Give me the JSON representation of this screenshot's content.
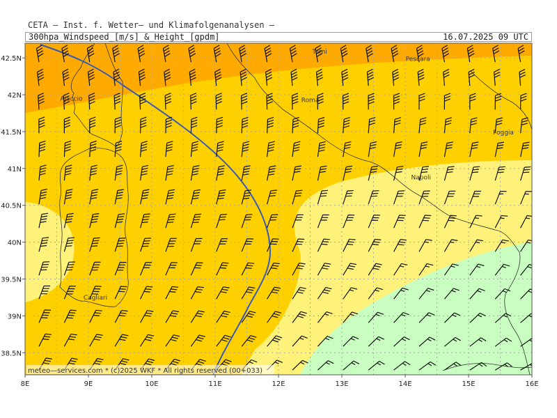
{
  "header": {
    "title": "CETA — Inst. f. Wetter— und Klimafolgenanalysen —",
    "product": "300hpa_Windspeed_[m/s]_&_Height_[gpdm]",
    "datetime": "16.07.2025 09 UTC"
  },
  "map": {
    "lon_range": [
      8,
      16
    ],
    "lat_range": [
      38.2,
      42.7
    ],
    "lon_ticks": [
      {
        "value": 8,
        "label": "8E"
      },
      {
        "value": 9,
        "label": "9E"
      },
      {
        "value": 10,
        "label": "10E"
      },
      {
        "value": 11,
        "label": "11E"
      },
      {
        "value": 12,
        "label": "12E"
      },
      {
        "value": 13,
        "label": "13E"
      },
      {
        "value": 14,
        "label": "14E"
      },
      {
        "value": 15,
        "label": "15E"
      },
      {
        "value": 16,
        "label": "16E"
      }
    ],
    "lat_ticks": [
      {
        "value": 38.5,
        "label": "38.5N"
      },
      {
        "value": 39,
        "label": "39N"
      },
      {
        "value": 39.5,
        "label": "39.5N"
      },
      {
        "value": 40,
        "label": "40N"
      },
      {
        "value": 40.5,
        "label": "40.5N"
      },
      {
        "value": 41,
        "label": "41N"
      },
      {
        "value": 41.5,
        "label": "41.5N"
      },
      {
        "value": 42,
        "label": "42N"
      },
      {
        "value": 42.5,
        "label": "42.5N"
      }
    ],
    "cities": [
      {
        "name": "Terni",
        "lon": 12.65,
        "lat": 42.56
      },
      {
        "name": "Pescara",
        "lon": 14.2,
        "lat": 42.46
      },
      {
        "name": "Ajaccio",
        "lon": 8.73,
        "lat": 41.92
      },
      {
        "name": "Roma",
        "lon": 12.5,
        "lat": 41.9
      },
      {
        "name": "Foggia",
        "lon": 15.55,
        "lat": 41.46
      },
      {
        "name": "Napoli",
        "lon": 14.25,
        "lat": 40.85
      },
      {
        "name": "Cagliari",
        "lon": 9.11,
        "lat": 39.22
      }
    ],
    "colors": {
      "band_orange": "#ffaa00",
      "band_gold": "#ffd000",
      "band_yellow": "#fff27a",
      "band_green": "#c8ffc0",
      "grid": "#a9a9a9",
      "coast": "#333333",
      "contour": "#3a5ab4",
      "barb": "#111111"
    },
    "credit": "meteo—services.com * (c)2025 WKF * All rights reserved (00+033)"
  }
}
